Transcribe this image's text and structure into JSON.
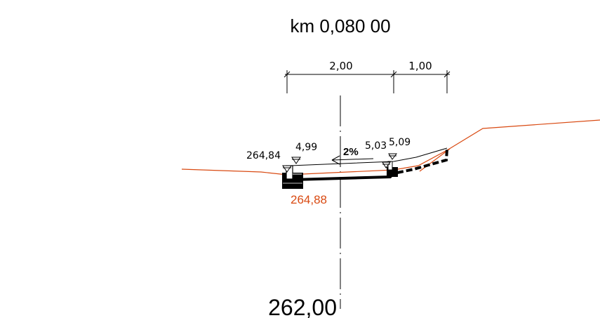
{
  "section": {
    "station": "km 0,080 00",
    "datum_elevation": "262,00",
    "ground_elevation": "264,88",
    "crossfall": "2%",
    "ground_color": "#d94a12"
  },
  "dimensions": {
    "left_width": "2,00",
    "right_width": "1,00"
  },
  "levels": {
    "left_edge": "264,84",
    "left_edge_offset": "4,99",
    "right_a": "5,03",
    "right_b": "5,09"
  }
}
